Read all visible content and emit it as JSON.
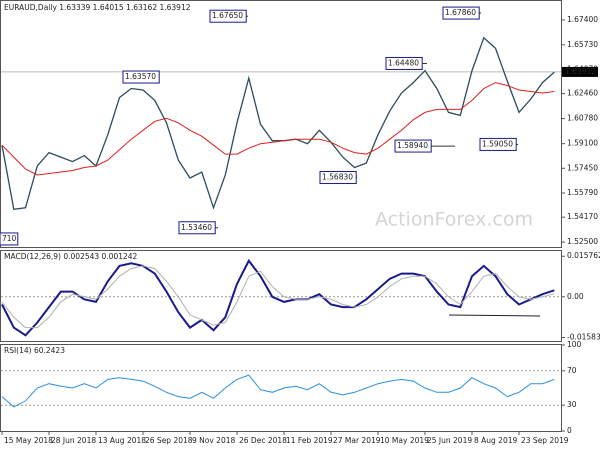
{
  "chart_data": [
    {
      "type": "price",
      "header": "EURAUD,Daily  1.63339 1.64015 1.63162 1.63912",
      "watermark": "ActionForex.com",
      "categories": [
        "15 May 2018",
        null,
        null,
        null,
        "28 Jun 2018",
        null,
        null,
        null,
        "13 Aug 2018",
        null,
        null,
        null,
        "26 Sep 2018",
        null,
        null,
        null,
        "9 Nov 2018",
        null,
        null,
        null,
        "26 Dec 2018",
        null,
        null,
        null,
        "11 Feb 2019",
        null,
        null,
        null,
        "27 Mar 2019",
        null,
        null,
        null,
        "10 May 2019",
        null,
        null,
        null,
        "25 Jun 2019",
        null,
        null,
        null,
        "8 Aug 2019",
        null,
        null,
        null,
        "23 Sep 2019",
        null,
        null,
        null
      ],
      "series": [
        {
          "name": "EURAUD",
          "color": "#2a4d5e",
          "values": [
            1.59,
            1.547,
            1.548,
            1.576,
            1.585,
            1.582,
            1.579,
            1.583,
            1.576,
            1.597,
            1.622,
            1.628,
            1.627,
            1.62,
            1.605,
            1.58,
            1.568,
            1.572,
            1.548,
            1.57,
            1.605,
            1.635,
            1.604,
            1.593,
            1.593,
            1.594,
            1.591,
            1.6,
            1.592,
            1.582,
            1.575,
            1.578,
            1.597,
            1.613,
            1.625,
            1.632,
            1.64,
            1.628,
            1.612,
            1.61,
            1.64,
            1.662,
            1.655,
            1.633,
            1.612,
            1.621,
            1.632,
            1.639
          ]
        },
        {
          "name": "MA",
          "color": "#e0201b",
          "values": [
            1.59,
            1.582,
            1.574,
            1.57,
            1.571,
            1.572,
            1.573,
            1.575,
            1.576,
            1.58,
            1.587,
            1.594,
            1.6,
            1.606,
            1.608,
            1.605,
            1.6,
            1.596,
            1.59,
            1.584,
            1.584,
            1.588,
            1.591,
            1.592,
            1.593,
            1.594,
            1.594,
            1.594,
            1.592,
            1.588,
            1.585,
            1.584,
            1.588,
            1.594,
            1.6,
            1.607,
            1.612,
            1.614,
            1.614,
            1.614,
            1.62,
            1.628,
            1.632,
            1.63,
            1.627,
            1.626,
            1.625,
            1.626
          ]
        }
      ],
      "last_price": 1.63912,
      "annotations": [
        {
          "label": "1.67650",
          "value": 1.6765
        },
        {
          "label": "1.67860",
          "value": 1.6786
        },
        {
          "label": "1.63570",
          "value": 1.6357
        },
        {
          "label": "1.64480",
          "value": 1.6448
        },
        {
          "label": "1.58940",
          "value": 1.5894
        },
        {
          "label": "1.59050",
          "value": 1.5905
        },
        {
          "label": "1.56830",
          "value": 1.5683
        },
        {
          "label": "1.53460",
          "value": 1.5346
        },
        {
          "label": "710",
          "value": 1.5271
        }
      ],
      "ylim": [
        1.5217,
        1.6867
      ],
      "yticks": [
        {
          "value": 1.674,
          "label": "1.67400"
        },
        {
          "value": 1.6573,
          "label": "1.65730"
        },
        {
          "value": 1.6407,
          "label": "1.64070"
        },
        {
          "value": 1.6246,
          "label": "1.62460"
        },
        {
          "value": 1.6078,
          "label": "1.60780"
        },
        {
          "value": 1.591,
          "label": "1.59100"
        },
        {
          "value": 1.5745,
          "label": "1.57450"
        },
        {
          "value": 1.5579,
          "label": "1.55790"
        },
        {
          "value": 1.5417,
          "label": "1.54170"
        },
        {
          "value": 1.525,
          "label": "1.52500"
        }
      ]
    },
    {
      "type": "macd",
      "header": "MACD(12,26,9) 0.002543 0.001242",
      "series": [
        {
          "name": "MACD",
          "color": "#1a1a8c",
          "values": [
            -0.003,
            -0.012,
            -0.015,
            -0.01,
            -0.004,
            0.002,
            0.002,
            -0.001,
            -0.002,
            0.006,
            0.012,
            0.013,
            0.012,
            0.009,
            0.002,
            -0.006,
            -0.012,
            -0.009,
            -0.013,
            -0.008,
            0.005,
            0.014,
            0.008,
            0.0,
            -0.002,
            -0.001,
            -0.001,
            0.001,
            -0.003,
            -0.004,
            -0.004,
            -0.001,
            0.003,
            0.007,
            0.009,
            0.009,
            0.008,
            0.002,
            -0.003,
            -0.004,
            0.008,
            0.012,
            0.008,
            0.001,
            -0.003,
            -0.001,
            0.001,
            0.0025
          ]
        },
        {
          "name": "Signal",
          "color": "#b0b0b0",
          "values": [
            -0.002,
            -0.008,
            -0.012,
            -0.012,
            -0.008,
            -0.002,
            0.001,
            0.0,
            -0.001,
            0.003,
            0.008,
            0.011,
            0.012,
            0.011,
            0.006,
            0.0,
            -0.007,
            -0.009,
            -0.011,
            -0.01,
            -0.002,
            0.008,
            0.01,
            0.004,
            0.0,
            -0.001,
            -0.001,
            0.0,
            -0.001,
            -0.003,
            -0.004,
            -0.003,
            0.0,
            0.004,
            0.007,
            0.008,
            0.008,
            0.005,
            0.0,
            -0.003,
            0.002,
            0.008,
            0.009,
            0.004,
            0.0,
            -0.001,
            0.0,
            0.0012
          ]
        }
      ],
      "ylim": [
        -0.0172,
        0.0178
      ],
      "yticks": [
        0.015762,
        {
          "value": 0,
          "label": "0.00"
        },
        -0.015834
      ]
    },
    {
      "type": "rsi",
      "header": "RSI(14) 60.2423",
      "series": [
        {
          "name": "RSI",
          "color": "#2b8fe0",
          "values": [
            40,
            28,
            35,
            50,
            55,
            52,
            50,
            55,
            50,
            60,
            62,
            60,
            58,
            52,
            45,
            40,
            38,
            45,
            38,
            50,
            60,
            65,
            48,
            45,
            50,
            52,
            48,
            55,
            45,
            42,
            45,
            50,
            55,
            58,
            60,
            58,
            50,
            45,
            45,
            50,
            62,
            55,
            50,
            40,
            45,
            55,
            55,
            60
          ]
        }
      ],
      "ylim": [
        0,
        100
      ],
      "yticks": [
        100,
        70,
        30,
        0
      ]
    }
  ]
}
